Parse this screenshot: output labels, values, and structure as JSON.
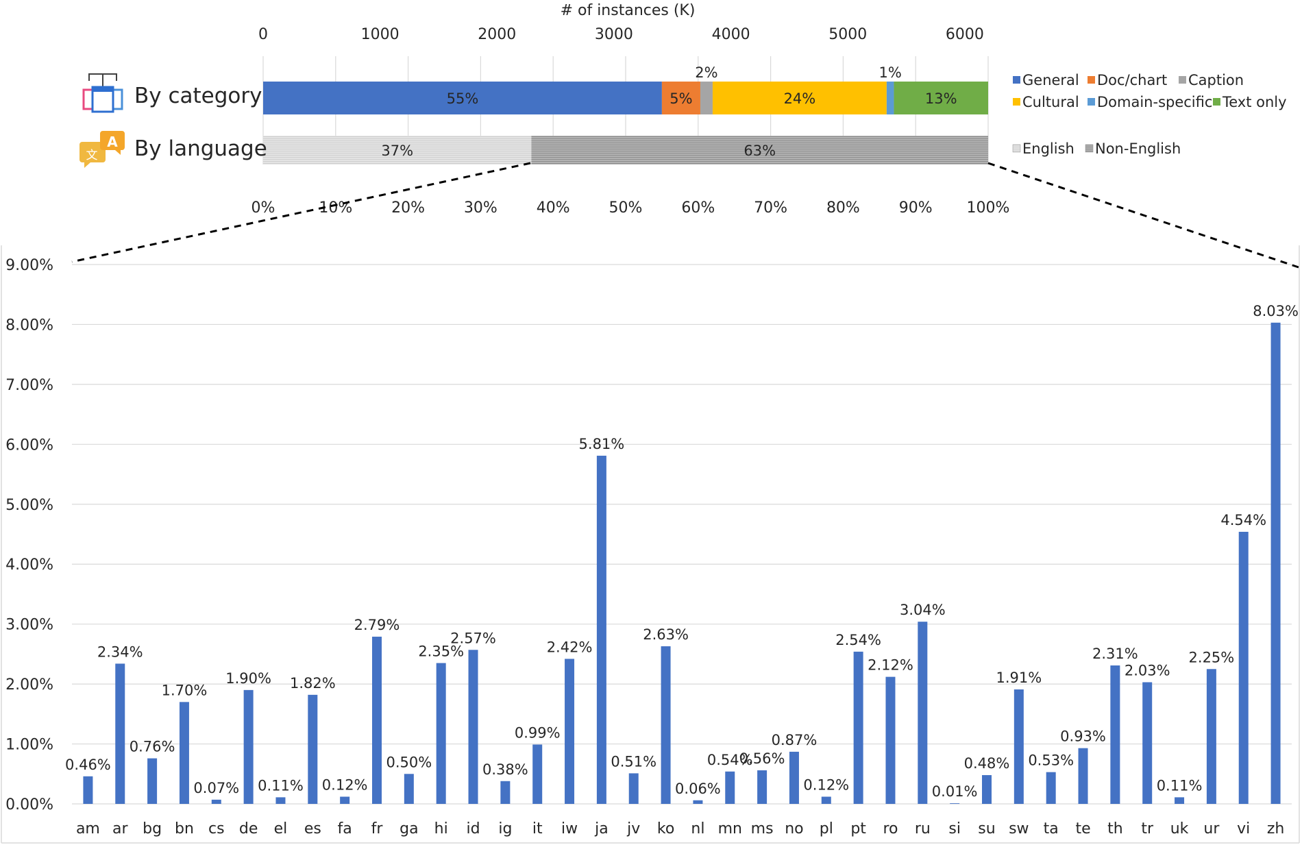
{
  "chart_data": [
    {
      "type": "bar",
      "orientation": "horizontal-stacked",
      "title": "# of instances (K)",
      "top_axis": {
        "label": "# of instances (K)",
        "ticks": [
          "0",
          "1000",
          "2000",
          "3000",
          "4000",
          "5000",
          "6000"
        ],
        "range": [
          0,
          6200
        ]
      },
      "bottom_axis": {
        "ticks": [
          "0%",
          "10%",
          "20%",
          "30%",
          "40%",
          "50%",
          "60%",
          "70%",
          "80%",
          "90%",
          "100%"
        ],
        "range": [
          0,
          100
        ]
      },
      "rows": [
        {
          "name": "By category",
          "icon": "category-icon",
          "segments": [
            {
              "name": "General",
              "value": 55,
              "label": "55%",
              "color": "#4472c4"
            },
            {
              "name": "Doc/chart",
              "value": 5.3,
              "label": "5%",
              "color": "#ed7d31"
            },
            {
              "name": "Caption",
              "value": 1.7,
              "label": "2%",
              "color": "#a5a5a5"
            },
            {
              "name": "Cultural",
              "value": 24,
              "label": "24%",
              "color": "#ffc000"
            },
            {
              "name": "Domain-specific",
              "value": 1,
              "label": "1%",
              "color": "#5b9bd5"
            },
            {
              "name": "Text only",
              "value": 13,
              "label": "13%",
              "color": "#70ad47"
            }
          ]
        },
        {
          "name": "By language",
          "icon": "translate-icon",
          "segments": [
            {
              "name": "English",
              "value": 37,
              "label": "37%",
              "color": "#d9d9d9"
            },
            {
              "name": "Non-English",
              "value": 63,
              "label": "63%",
              "color": "#a6a6a6"
            }
          ]
        }
      ],
      "legend_category": [
        "General",
        "Doc/chart",
        "Caption",
        "Cultural",
        "Domain-specific",
        "Text only"
      ],
      "legend_language": [
        "English",
        "Non-English"
      ]
    },
    {
      "type": "bar",
      "title": "",
      "xlabel": "",
      "ylabel": "",
      "ylim": [
        0,
        9
      ],
      "yticks": [
        "0.00%",
        "1.00%",
        "2.00%",
        "3.00%",
        "4.00%",
        "5.00%",
        "6.00%",
        "7.00%",
        "8.00%",
        "9.00%"
      ],
      "bar_color": "#4472c4",
      "categories": [
        "am",
        "ar",
        "bg",
        "bn",
        "cs",
        "de",
        "el",
        "es",
        "fa",
        "fr",
        "ga",
        "hi",
        "id",
        "ig",
        "it",
        "iw",
        "ja",
        "jv",
        "ko",
        "nl",
        "mn",
        "ms",
        "no",
        "pl",
        "pt",
        "ro",
        "ru",
        "si",
        "su",
        "sw",
        "ta",
        "te",
        "th",
        "tr",
        "uk",
        "ur",
        "vi",
        "zh"
      ],
      "values": [
        0.46,
        2.34,
        0.76,
        1.7,
        0.07,
        1.9,
        0.11,
        1.82,
        0.12,
        2.79,
        0.5,
        2.35,
        2.57,
        0.38,
        0.99,
        2.42,
        5.81,
        0.51,
        2.63,
        0.06,
        0.54,
        0.56,
        0.87,
        0.12,
        2.54,
        2.12,
        3.04,
        0.01,
        0.48,
        1.91,
        0.53,
        0.93,
        2.31,
        2.03,
        0.11,
        2.25,
        4.54,
        8.03
      ],
      "labels": [
        "0.46%",
        "2.34%",
        "0.76%",
        "1.70%",
        "0.07%",
        "1.90%",
        "0.11%",
        "1.82%",
        "0.12%",
        "2.79%",
        "0.50%",
        "2.35%",
        "2.57%",
        "0.38%",
        "0.99%",
        "2.42%",
        "5.81%",
        "0.51%",
        "2.63%",
        "0.06%",
        "0.54%",
        "0.56%",
        "0.87%",
        "0.12%",
        "2.54%",
        "2.12%",
        "3.04%",
        "0.01%",
        "0.48%",
        "1.91%",
        "0.53%",
        "0.93%",
        "2.31%",
        "2.03%",
        "0.11%",
        "2.25%",
        "4.54%",
        "8.03%"
      ]
    }
  ]
}
